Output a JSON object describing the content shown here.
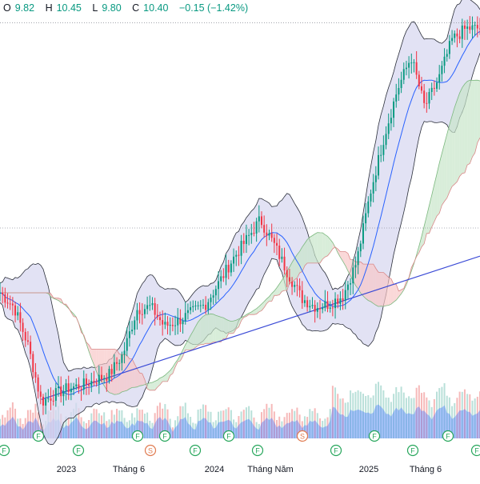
{
  "legend": {
    "o_label": "O",
    "o_value": "9.82",
    "h_label": "H",
    "h_value": "10.45",
    "l_label": "L",
    "l_value": "9.80",
    "c_label": "C",
    "c_value": "10.40",
    "change": "−0.15 (−1.42%)"
  },
  "colors": {
    "up": "#089981",
    "down": "#f23645",
    "bollinger_fill": "#d8d8f0",
    "bollinger_line": "#2a2e39",
    "bollinger_basis": "#2962ff",
    "cloud_bull": "#c8e6c9",
    "cloud_bear": "#f8c8c8",
    "trendline": "#3a4ad6",
    "volume": "#2962ff",
    "volume_up": "#a8d8cf",
    "volume_down": "#f4a7a7"
  },
  "axis": {
    "x_ticks": [
      "2023",
      "Tháng 6",
      "2024",
      "Tháng Năm",
      "2025",
      "Tháng 6"
    ]
  },
  "markers": [
    "F",
    "F",
    "F",
    "F",
    "S",
    "F",
    "F",
    "F",
    "F",
    "S",
    "F",
    "F",
    "F",
    "F",
    "F"
  ],
  "chart_data": {
    "type": "candlestick",
    "title": "",
    "xlabel": "",
    "ylabel": "",
    "x_range": [
      "2022-10",
      "2025-09"
    ],
    "y_range": [
      5.5,
      20.5
    ],
    "last": {
      "open": 9.82,
      "high": 10.45,
      "low": 9.8,
      "close": 10.4,
      "change": -0.15,
      "change_pct": -1.42
    },
    "series": [
      {
        "name": "",
        "points": [
          {
            "x": "2022-10",
            "y": 10.6
          },
          {
            "x": "2022-11",
            "y": 10.1
          },
          {
            "x": "2022-12",
            "y": 8.8
          },
          {
            "x": "2023-01",
            "y": 6.7
          },
          {
            "x": "2023-02",
            "y": 7.0
          },
          {
            "x": "2023-03",
            "y": 7.2
          },
          {
            "x": "2023-04",
            "y": 7.3
          },
          {
            "x": "2023-05",
            "y": 7.5
          },
          {
            "x": "2023-06",
            "y": 7.7
          },
          {
            "x": "2023-07",
            "y": 8.4
          },
          {
            "x": "2023-08",
            "y": 10.0
          },
          {
            "x": "2023-09",
            "y": 10.1
          },
          {
            "x": "2023-10",
            "y": 9.4
          },
          {
            "x": "2023-11",
            "y": 9.6
          },
          {
            "x": "2023-12",
            "y": 9.9
          },
          {
            "x": "2024-01",
            "y": 10.2
          },
          {
            "x": "2024-02",
            "y": 11.0
          },
          {
            "x": "2024-03",
            "y": 11.8
          },
          {
            "x": "2024-04",
            "y": 12.5
          },
          {
            "x": "2024-05",
            "y": 13.2
          },
          {
            "x": "2024-06",
            "y": 12.3
          },
          {
            "x": "2024-07",
            "y": 11.3
          },
          {
            "x": "2024-08",
            "y": 10.4
          },
          {
            "x": "2024-09",
            "y": 10.1
          },
          {
            "x": "2024-10",
            "y": 10.2
          },
          {
            "x": "2024-11",
            "y": 10.5
          },
          {
            "x": "2024-12",
            "y": 11.7
          },
          {
            "x": "2025-01",
            "y": 14.2
          },
          {
            "x": "2025-02",
            "y": 16.2
          },
          {
            "x": "2025-03",
            "y": 17.8
          },
          {
            "x": "2025-04",
            "y": 19.0
          },
          {
            "x": "2025-05",
            "y": 17.2
          },
          {
            "x": "2025-06",
            "y": 18.2
          },
          {
            "x": "2025-07",
            "y": 19.6
          },
          {
            "x": "2025-08",
            "y": 20.0
          }
        ]
      }
    ],
    "grid": false,
    "legend_position": "top-left"
  }
}
